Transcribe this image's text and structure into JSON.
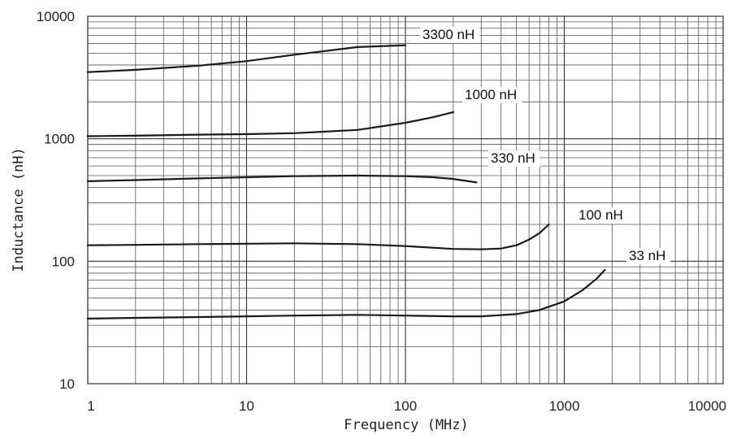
{
  "chart_data": {
    "type": "line",
    "x_scale": "log",
    "y_scale": "log",
    "xlim": [
      1,
      10000
    ],
    "ylim": [
      10,
      10000
    ],
    "xlabel": "Frequency (MHz)",
    "ylabel": "Inductance (nH)",
    "x_ticks": [
      "1",
      "10",
      "100",
      "1000",
      "10000"
    ],
    "y_ticks": [
      "10",
      "100",
      "1000",
      "10000"
    ],
    "grid": true,
    "legend": "none",
    "series": [
      {
        "name": "3300 nH",
        "x": [
          1,
          2,
          5,
          10,
          20,
          50,
          100
        ],
        "y": [
          3500,
          3650,
          3950,
          4300,
          4850,
          5600,
          5800
        ]
      },
      {
        "name": "1000 nH",
        "x": [
          1,
          2,
          5,
          10,
          20,
          50,
          100,
          150,
          200
        ],
        "y": [
          1050,
          1060,
          1080,
          1090,
          1110,
          1180,
          1350,
          1500,
          1650
        ]
      },
      {
        "name": "330 nH",
        "x": [
          1,
          2,
          5,
          10,
          20,
          50,
          100,
          150,
          200,
          280
        ],
        "y": [
          450,
          460,
          475,
          485,
          495,
          500,
          495,
          485,
          470,
          440
        ]
      },
      {
        "name": "100 nH",
        "x": [
          1,
          2,
          5,
          10,
          20,
          50,
          100,
          200,
          300,
          400,
          500,
          600,
          700,
          800
        ],
        "y": [
          135,
          136,
          138,
          139,
          140,
          138,
          133,
          126,
          125,
          127,
          135,
          150,
          170,
          200
        ]
      },
      {
        "name": "33 nH",
        "x": [
          1,
          2,
          5,
          10,
          20,
          50,
          100,
          200,
          300,
          500,
          700,
          1000,
          1300,
          1600,
          1800
        ],
        "y": [
          34,
          34.5,
          35,
          35.5,
          36,
          36.5,
          36,
          35.5,
          35.5,
          37,
          40,
          47,
          58,
          72,
          85
        ]
      }
    ]
  }
}
